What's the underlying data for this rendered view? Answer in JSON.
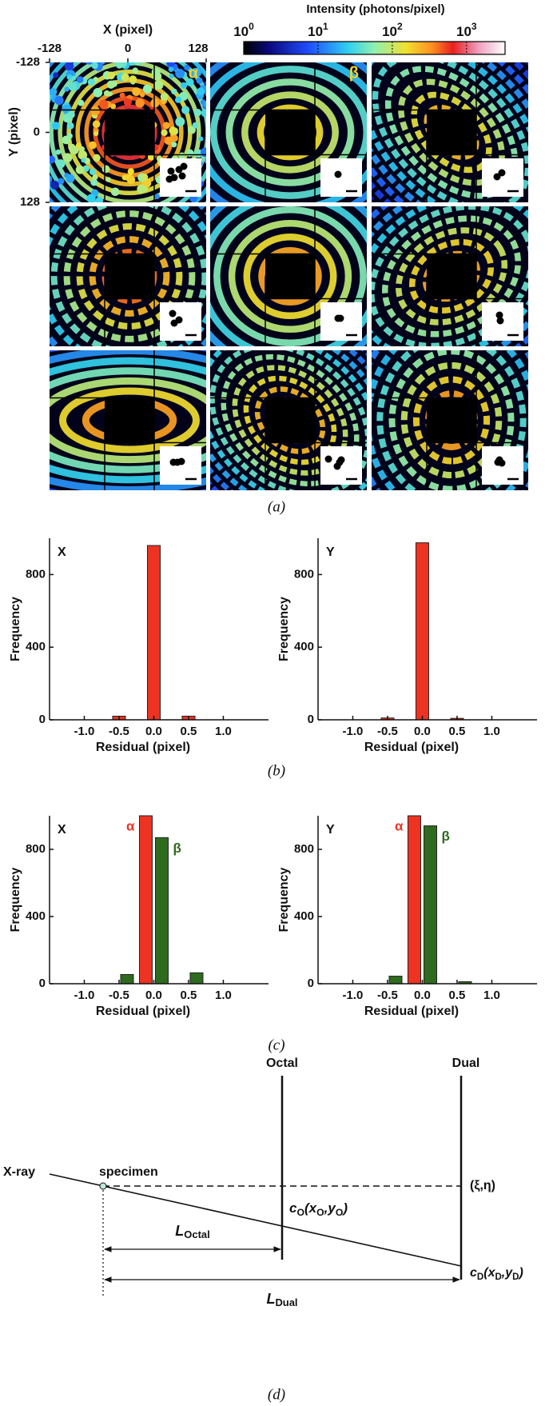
{
  "panel_a": {
    "x_label": "X (pixel)",
    "y_label": "Y (pixel)",
    "xlim": [
      -128,
      128
    ],
    "ylim": [
      -128,
      128
    ],
    "xticks": [
      -128,
      0,
      128
    ],
    "yticks": [
      -128,
      0,
      128
    ],
    "colorbar": {
      "title": "Intensity (photons/pixel)",
      "log": true,
      "lim": [
        1,
        3300
      ],
      "ticks": [
        {
          "value": 1,
          "label": "10",
          "exponent": "0"
        },
        {
          "value": 10,
          "label": "10",
          "exponent": "1"
        },
        {
          "value": 100,
          "label": "10",
          "exponent": "2"
        },
        {
          "value": 1000,
          "label": "10",
          "exponent": "3"
        }
      ]
    },
    "labels": [
      "α",
      "β"
    ],
    "caption": "(a)"
  },
  "chart_data": [
    {
      "type": "bar",
      "title": "X",
      "x": [
        -0.5,
        0,
        0.5
      ],
      "values": [
        20,
        960,
        20
      ],
      "color": "#ee3322",
      "xlim": [
        -1.5,
        1.65
      ],
      "ylim": [
        0,
        1000
      ],
      "yticks": [
        0,
        400,
        800
      ],
      "xticks": [
        {
          "value": -1,
          "label": "-1.0"
        },
        -0.5,
        {
          "value": 0,
          "label": "0.0"
        },
        0.5,
        {
          "value": 1,
          "label": "1.0"
        }
      ],
      "x_label": "Residual (pixel)",
      "y_label": "Frequency"
    },
    {
      "type": "bar",
      "title": "Y",
      "x": [
        -0.5,
        0,
        0.5
      ],
      "values": [
        10,
        975,
        8
      ],
      "color": "#ee3322",
      "xlim": [
        -1.5,
        1.65
      ],
      "ylim": [
        0,
        1000
      ],
      "yticks": [
        0,
        400,
        800
      ],
      "xticks": [
        {
          "value": -1,
          "label": "-1.0"
        },
        -0.5,
        {
          "value": 0,
          "label": "0.0"
        },
        0.5,
        {
          "value": 1,
          "label": "1.0"
        }
      ],
      "x_label": "Residual (pixel)",
      "y_label": "Frequency"
    },
    {
      "type": "bar",
      "title": "X",
      "x": [
        -0.5,
        0,
        0.5
      ],
      "series": [
        {
          "name": "α",
          "color": "#ee3322",
          "values": [
            0,
            1000,
            0
          ]
        },
        {
          "name": "β",
          "color": "#2e6b1e",
          "values": [
            55,
            870,
            65
          ]
        }
      ],
      "xlim": [
        -1.5,
        1.65
      ],
      "ylim": [
        0,
        1000
      ],
      "yticks": [
        0,
        400,
        800
      ],
      "xticks": [
        {
          "value": -1,
          "label": "-1.0"
        },
        -0.5,
        {
          "value": 0,
          "label": "0.0"
        },
        0.5,
        {
          "value": 1,
          "label": "1.0"
        }
      ],
      "x_label": "Residual (pixel)",
      "y_label": "Frequency"
    },
    {
      "type": "bar",
      "title": "Y",
      "x": [
        -0.5,
        0,
        0.5
      ],
      "series": [
        {
          "name": "α",
          "color": "#ee3322",
          "values": [
            0,
            1000,
            0
          ]
        },
        {
          "name": "β",
          "color": "#2e6b1e",
          "values": [
            45,
            940,
            12
          ]
        }
      ],
      "xlim": [
        -1.5,
        1.65
      ],
      "ylim": [
        0,
        1000
      ],
      "yticks": [
        0,
        400,
        800
      ],
      "xticks": [
        {
          "value": -1,
          "label": "-1.0"
        },
        -0.5,
        {
          "value": 0,
          "label": "0.0"
        },
        0.5,
        {
          "value": 1,
          "label": "1.0"
        }
      ],
      "x_label": "Residual (pixel)",
      "y_label": "Frequency"
    }
  ],
  "caption_b": "(b)",
  "caption_c": "(c)",
  "panel_d": {
    "xray": "X-ray",
    "specimen": "specimen",
    "octal": "Octal",
    "dual": "Dual",
    "xi_eta": "(ξ,η)",
    "c_o": [
      "c",
      "O",
      "(x",
      "O",
      ",y",
      "O",
      ")"
    ],
    "c_d": [
      "c",
      "D",
      "(x",
      "D",
      ",y",
      "D",
      ")"
    ],
    "l_octal": [
      "L",
      "Octal"
    ],
    "l_dual": [
      "L",
      "Dual"
    ],
    "caption": "(d)"
  }
}
